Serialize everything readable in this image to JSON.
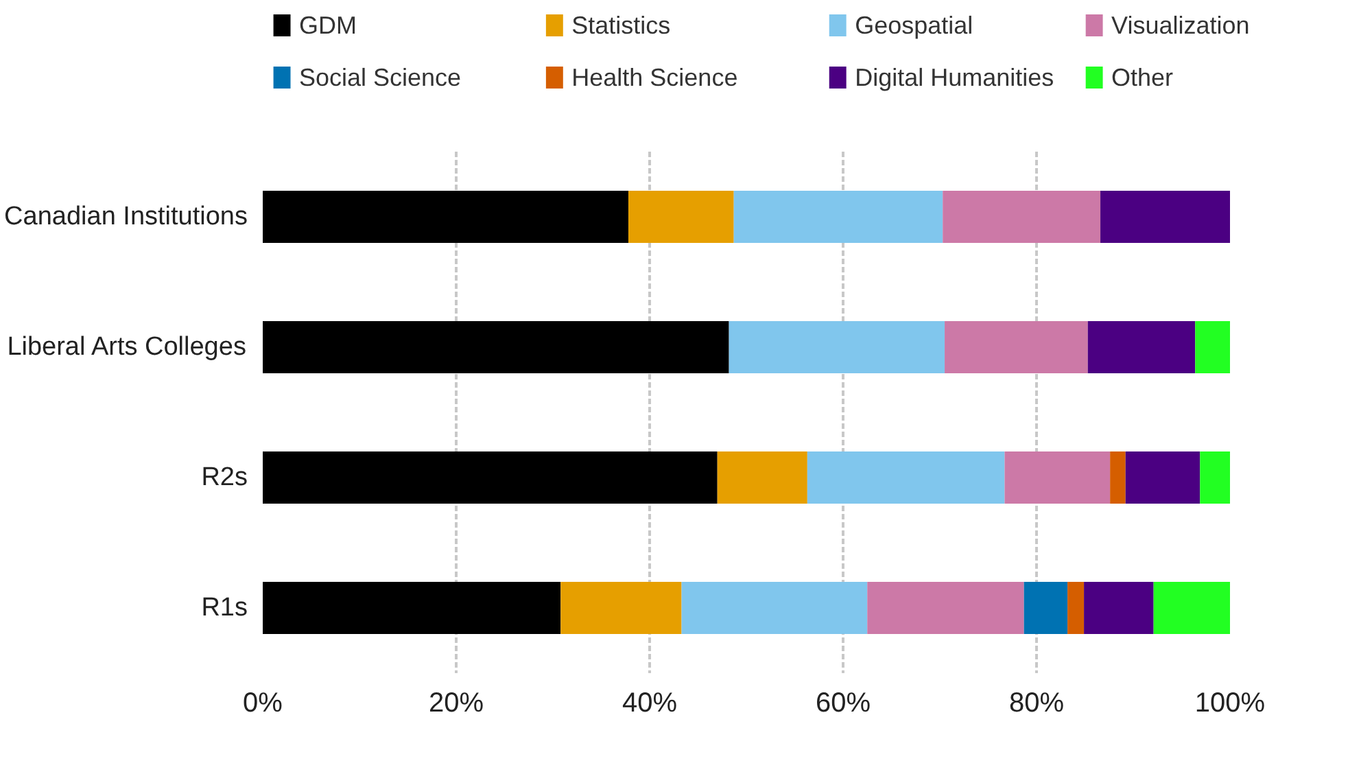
{
  "chart_data": {
    "type": "bar",
    "orientation": "horizontal",
    "stacked": true,
    "categories": [
      "Canadian Institutions",
      "Liberal Arts Colleges",
      "R2s",
      "R1s"
    ],
    "series": [
      {
        "name": "GDM",
        "color": "#000000",
        "values": [
          37.8,
          48.2,
          47.0,
          30.8
        ]
      },
      {
        "name": "Statistics",
        "color": "#e69f00",
        "values": [
          10.9,
          null,
          9.3,
          12.5
        ]
      },
      {
        "name": "Geospatial",
        "color": "#80c6ed",
        "values": [
          21.6,
          22.3,
          20.4,
          19.2
        ]
      },
      {
        "name": "Visualization",
        "color": "#cc79a7",
        "values": [
          16.3,
          14.8,
          10.9,
          16.2
        ]
      },
      {
        "name": "Social Science",
        "color": "#0072b2",
        "values": [
          null,
          null,
          null,
          4.5
        ]
      },
      {
        "name": "Health Science",
        "color": "#d55e00",
        "values": [
          null,
          null,
          1.6,
          1.7
        ]
      },
      {
        "name": "Digital Humanities",
        "color": "#4b0082",
        "values": [
          13.4,
          11.1,
          7.7,
          7.2
        ]
      },
      {
        "name": "Other",
        "color": "#22ff22",
        "values": [
          null,
          3.6,
          3.1,
          7.9
        ]
      }
    ],
    "xlim": [
      0,
      100
    ],
    "xticks": [
      {
        "value": 0,
        "label": "0%"
      },
      {
        "value": 20,
        "label": "20%"
      },
      {
        "value": 40,
        "label": "40%"
      },
      {
        "value": 60,
        "label": "60%"
      },
      {
        "value": 80,
        "label": "80%"
      },
      {
        "value": 100,
        "label": "100%"
      }
    ],
    "grid": "x",
    "legend": "top"
  }
}
